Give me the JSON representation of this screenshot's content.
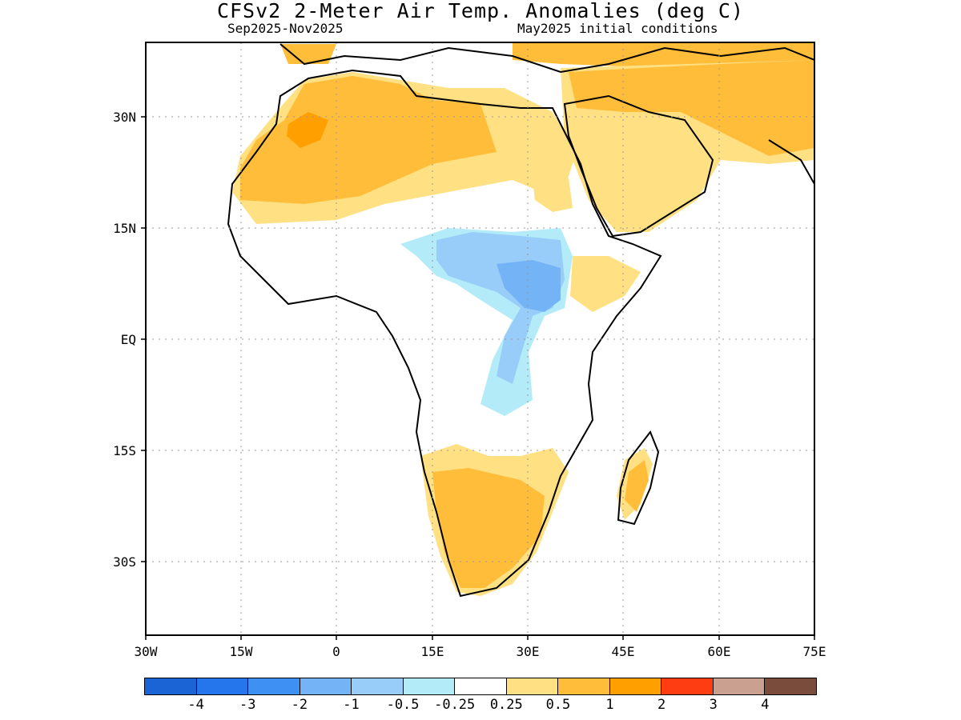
{
  "title": "CFSv2 2-Meter Air Temp. Anomalies (deg C)",
  "period": "Sep2025-Nov2025",
  "initial_conditions": "May2025 initial conditions",
  "map": {
    "lon_range": [
      -30,
      75
    ],
    "lat_range": [
      -40,
      40
    ],
    "x_ticks": [
      "30W",
      "15W",
      "0",
      "15E",
      "30E",
      "45E",
      "60E",
      "75E"
    ],
    "y_ticks": [
      "30N",
      "15N",
      "EQ",
      "15S",
      "30S"
    ],
    "gridlines": "dotted",
    "background_color": "#ffffff",
    "coastline_color": "#000000"
  },
  "colorbar": {
    "colors": [
      "#1a64d6",
      "#2576ec",
      "#3e91f2",
      "#74b3f5",
      "#97cdf8",
      "#b3ecf8",
      "#ffffff",
      "#ffe083",
      "#ffbd3a",
      "#ff9f00",
      "#ff3d12",
      "#caa090",
      "#7a4c3c"
    ],
    "labels": [
      "-4",
      "-3",
      "-2",
      "-1",
      "-0.5",
      "-0.25",
      "0.25",
      "0.5",
      "1",
      "2",
      "3",
      "4"
    ]
  }
}
